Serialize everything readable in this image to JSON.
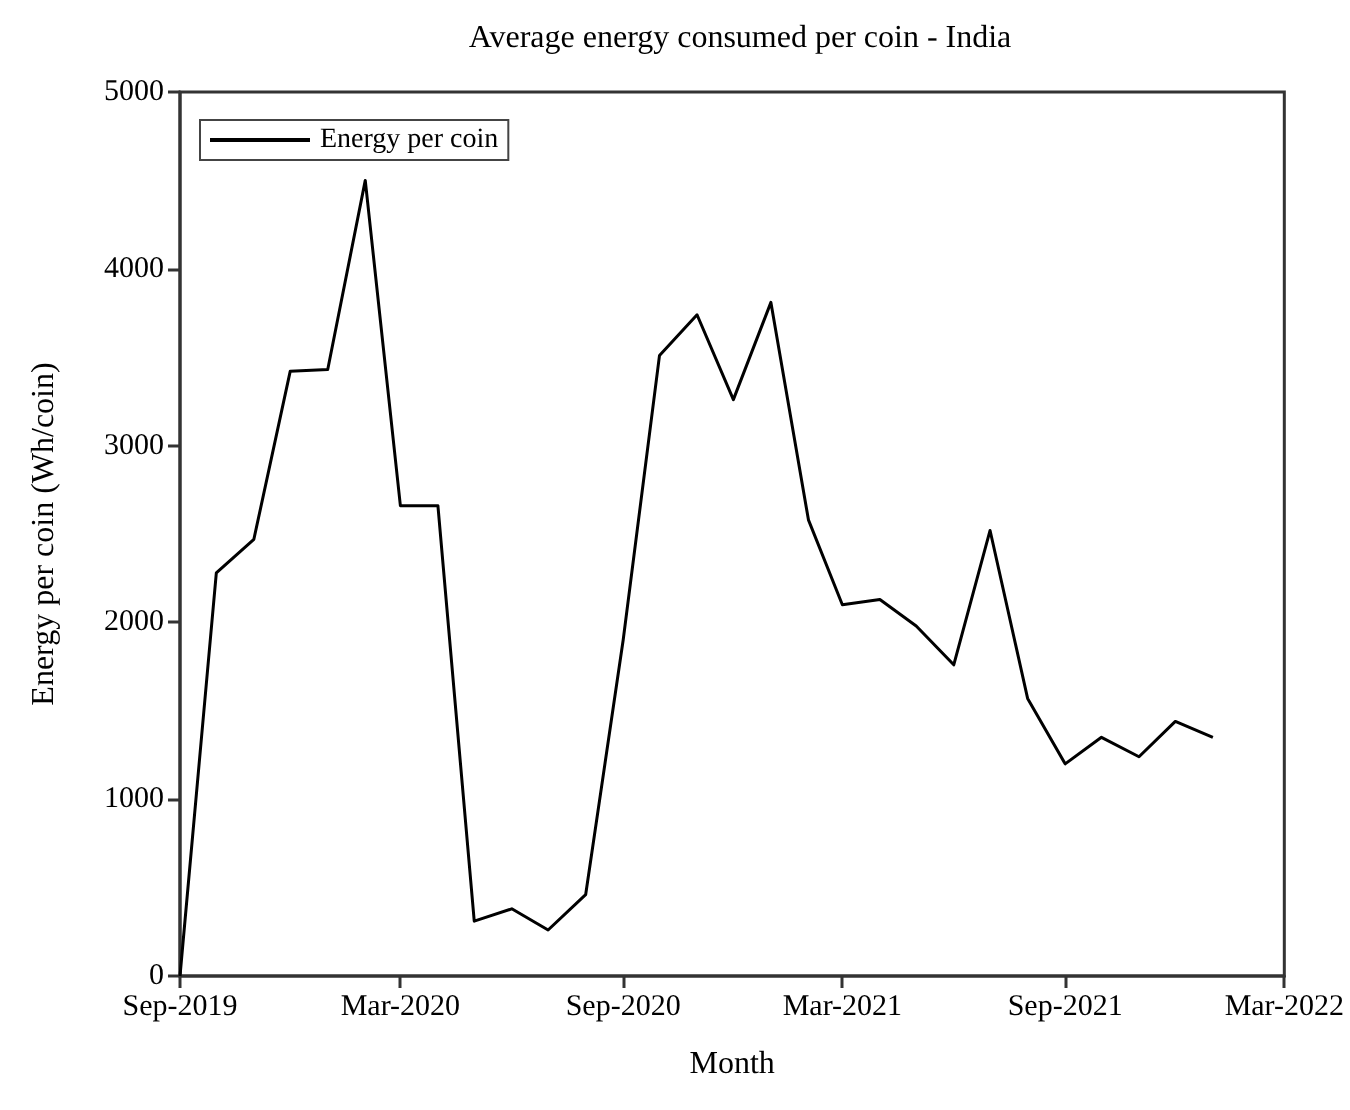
{
  "chart_data": {
    "type": "line",
    "title": "Average energy consumed per coin - India",
    "xlabel": "Month",
    "ylabel": "Energy per coin (Wh/coin)",
    "x": [
      "2019-09",
      "2019-10",
      "2019-11",
      "2019-12",
      "2020-01",
      "2020-02",
      "2020-03",
      "2020-04",
      "2020-05",
      "2020-06",
      "2020-07",
      "2020-08",
      "2020-09",
      "2020-10",
      "2020-11",
      "2020-12",
      "2021-01",
      "2021-02",
      "2021-03",
      "2021-04",
      "2021-05",
      "2021-06",
      "2021-07",
      "2021-08",
      "2021-09",
      "2021-10",
      "2021-11",
      "2021-12",
      "2022-01"
    ],
    "series": [
      {
        "name": "Energy per coin",
        "color": "#000000",
        "values": [
          0,
          2280,
          2470,
          3420,
          3430,
          4500,
          2660,
          2660,
          310,
          380,
          260,
          460,
          1900,
          3510,
          3740,
          3260,
          3810,
          2580,
          2100,
          2130,
          1980,
          1760,
          2520,
          1570,
          1200,
          1350,
          1240,
          1440,
          1350
        ]
      }
    ],
    "xlim": [
      "2019-09",
      "2022-03"
    ],
    "xticks": [
      {
        "value": "2019-09",
        "label": "Sep-2019"
      },
      {
        "value": "2020-03",
        "label": "Mar-2020"
      },
      {
        "value": "2020-09",
        "label": "Sep-2020"
      },
      {
        "value": "2021-03",
        "label": "Mar-2021"
      },
      {
        "value": "2021-09",
        "label": "Sep-2021"
      },
      {
        "value": "2022-03",
        "label": "Mar-2022"
      }
    ],
    "ylim": [
      0,
      5000
    ],
    "yticks": [
      0,
      1000,
      2000,
      3000,
      4000,
      5000
    ],
    "grid": false,
    "legend": "top left",
    "marker": "none",
    "line_style": "solid"
  }
}
